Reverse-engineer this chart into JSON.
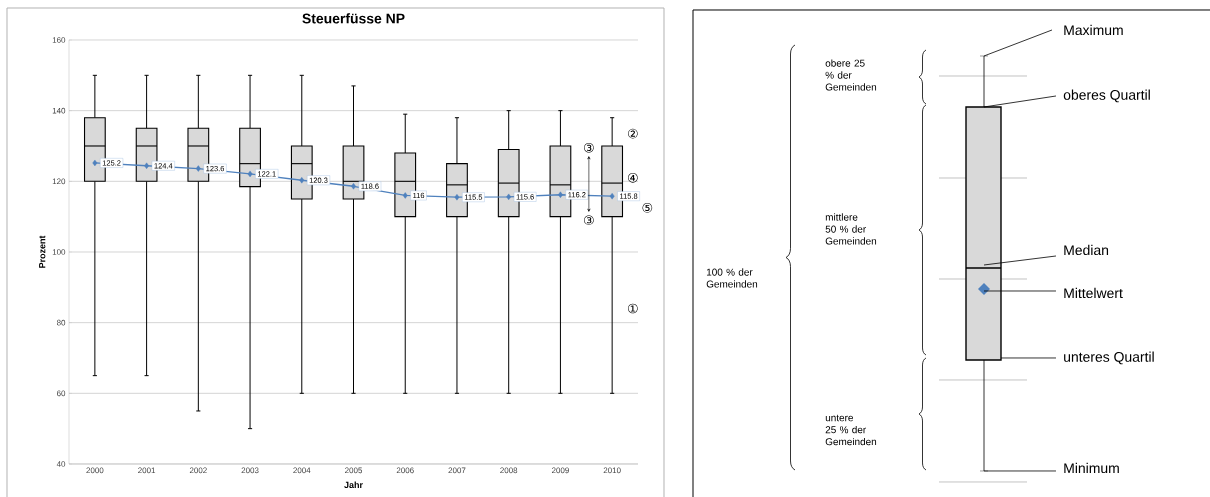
{
  "chart_data": [
    {
      "type": "box",
      "title": "Steuerfüsse NP",
      "xlabel": "Jahr",
      "ylabel": "Prozent",
      "categories": [
        "2000",
        "2001",
        "2002",
        "2003",
        "2004",
        "2005",
        "2006",
        "2007",
        "2008",
        "2009",
        "2010"
      ],
      "ylim": [
        40,
        160
      ],
      "yticks": [
        40,
        60,
        80,
        100,
        120,
        140,
        160
      ],
      "grid": "y",
      "series": [
        {
          "type": "box",
          "color": "#d9d9d9",
          "boxes": [
            {
              "low": 65,
              "q1": 120,
              "median": 130,
              "q3": 138,
              "high": 150
            },
            {
              "low": 65,
              "q1": 120,
              "median": 130,
              "q3": 135,
              "high": 150
            },
            {
              "low": 55,
              "q1": 120,
              "median": 130,
              "q3": 135,
              "high": 150
            },
            {
              "low": 50,
              "q1": 118.5,
              "median": 125,
              "q3": 135,
              "high": 150
            },
            {
              "low": 60,
              "q1": 115,
              "median": 125,
              "q3": 130,
              "high": 150
            },
            {
              "low": 60,
              "q1": 115,
              "median": 120,
              "q3": 130,
              "high": 147
            },
            {
              "low": 60,
              "q1": 110,
              "median": 120,
              "q3": 128,
              "high": 139
            },
            {
              "low": 60,
              "q1": 110,
              "median": 119,
              "q3": 125,
              "high": 138
            },
            {
              "low": 60,
              "q1": 110,
              "median": 119.5,
              "q3": 129,
              "high": 140
            },
            {
              "low": 60,
              "q1": 110,
              "median": 119,
              "q3": 130,
              "high": 140
            },
            {
              "low": 60,
              "q1": 110,
              "median": 119.5,
              "q3": 130,
              "high": 138
            }
          ]
        },
        {
          "type": "line",
          "color": "#4f81bd",
          "marker": "diamond",
          "values": [
            125.2,
            124.4,
            123.6,
            122.1,
            120.3,
            118.6,
            116,
            115.5,
            115.6,
            116.2,
            115.8
          ],
          "value_labels": [
            "125.2",
            "124.4",
            "123.6",
            "122.1",
            "120.3",
            "118.6",
            "116",
            "115.5",
            "115.6",
            "116.2",
            "115.8"
          ]
        }
      ],
      "annotations": [
        "①",
        "②",
        "③",
        "③",
        "④",
        "⑤"
      ]
    },
    {
      "type": "other",
      "annotations": [
        "Maximum",
        "oberes Quartil",
        "Median",
        "Mittelwert",
        "unteres Quartil",
        "Minimum",
        "obere 25 % der Gemeinden",
        "mittlere 50 % der Gemeinden",
        "untere 25 % der Gemeinden",
        "100 % der Gemeinden"
      ]
    }
  ]
}
